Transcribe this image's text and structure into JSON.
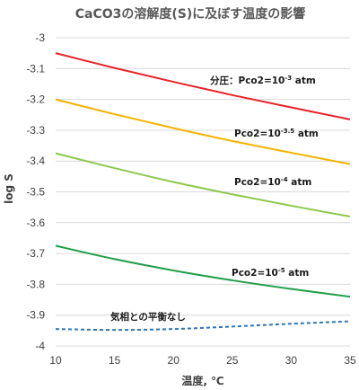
{
  "chart_data": {
    "type": "line",
    "title": "CaCO3の溶解度(S)に及ぼす温度の影響",
    "xlabel": "温度, ℃",
    "ylabel": "log S",
    "xlim": [
      10,
      35
    ],
    "ylim": [
      -4,
      -3
    ],
    "x_ticks": [
      "10",
      "15",
      "20",
      "25",
      "30",
      "35"
    ],
    "y_ticks": [
      "-3",
      "-3.1",
      "-3.2",
      "-3.3",
      "-3.4",
      "-3.5",
      "-3.6",
      "-3.7",
      "-3.8",
      "-3.9",
      "-4"
    ],
    "grid": true,
    "x": [
      10,
      15,
      20,
      25,
      30,
      35
    ],
    "series": [
      {
        "label": "分圧：Pco2=10^-3 atm",
        "color": "#e8232a",
        "dash": false,
        "values": [
          -3.05,
          -3.098,
          -3.143,
          -3.186,
          -3.226,
          -3.265
        ]
      },
      {
        "label": "Pco2=10^-3.5 atm",
        "color": "#f5b300",
        "dash": false,
        "values": [
          -3.2,
          -3.248,
          -3.293,
          -3.335,
          -3.373,
          -3.41
        ]
      },
      {
        "label": "Pco2=10^-4 atm",
        "color": "#8cc84b",
        "dash": false,
        "values": [
          -3.375,
          -3.423,
          -3.468,
          -3.508,
          -3.545,
          -3.58
        ]
      },
      {
        "label": "Pco2=10^-5 atm",
        "color": "#1f9e48",
        "dash": false,
        "values": [
          -3.675,
          -3.718,
          -3.755,
          -3.787,
          -3.815,
          -3.84
        ]
      },
      {
        "label": "気相との平衡なし",
        "color": "#2e75b6",
        "dash": true,
        "values": [
          -3.945,
          -3.948,
          -3.945,
          -3.937,
          -3.928,
          -3.92
        ]
      }
    ]
  }
}
